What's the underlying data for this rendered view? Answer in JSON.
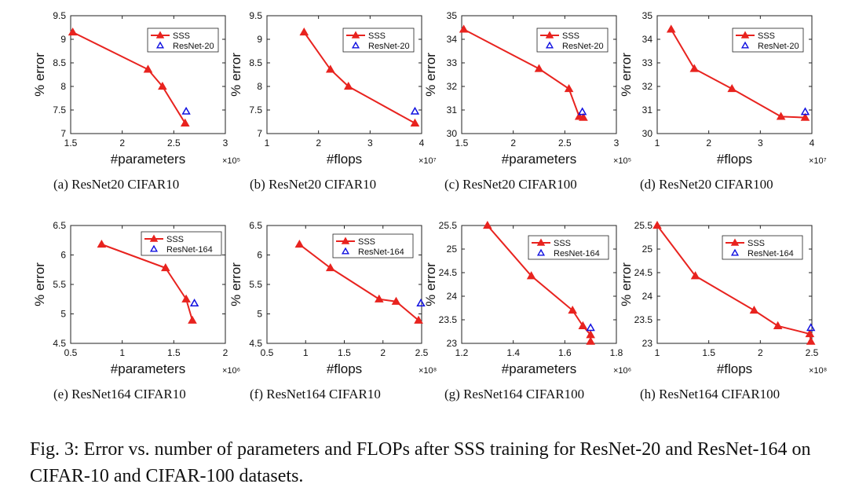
{
  "figure": {
    "caption": "Fig. 3: Error vs. number of parameters and FLOPs after SSS training for ResNet-20 and ResNet-164 on CIFAR-10 and CIFAR-100 datasets.",
    "colors": {
      "sss": "#e8231f",
      "baseline": "#1010e0",
      "axis": "#222222",
      "text": "#111111"
    }
  },
  "chart_data": [
    {
      "id": "a",
      "type": "line",
      "subcaption_label": "(a)",
      "subcaption_text": "ResNet20 CIFAR10",
      "xlabel": "#parameters",
      "ylabel": "% error",
      "x_exponent": "×10⁵",
      "xlim": [
        1.5,
        3
      ],
      "ylim": [
        7,
        9.5
      ],
      "xticks": [
        1.5,
        2,
        2.5,
        3
      ],
      "xtick_labels": [
        "1.5",
        "2",
        "2.5",
        "3"
      ],
      "yticks": [
        7,
        7.5,
        8,
        8.5,
        9,
        9.5
      ],
      "ytick_labels": [
        "7",
        "7.5",
        "8",
        "8.5",
        "9",
        "9.5"
      ],
      "series": [
        {
          "name": "SSS",
          "x": [
            1.52,
            2.25,
            2.39,
            2.61
          ],
          "y": [
            9.15,
            8.36,
            8.0,
            7.22
          ]
        },
        {
          "name": "ResNet-20",
          "x": [
            2.62
          ],
          "y": [
            7.47
          ]
        }
      ]
    },
    {
      "id": "b",
      "type": "line",
      "subcaption_label": "(b)",
      "subcaption_text": "ResNet20 CIFAR10",
      "xlabel": "#flops",
      "ylabel": "% error",
      "x_exponent": "×10⁷",
      "xlim": [
        1,
        4
      ],
      "ylim": [
        7,
        9.5
      ],
      "xticks": [
        1,
        2,
        3,
        4
      ],
      "xtick_labels": [
        "1",
        "2",
        "3",
        "4"
      ],
      "yticks": [
        7,
        7.5,
        8,
        8.5,
        9,
        9.5
      ],
      "ytick_labels": [
        "7",
        "7.5",
        "8",
        "8.5",
        "9",
        "9.5"
      ],
      "series": [
        {
          "name": "SSS",
          "x": [
            1.72,
            2.23,
            2.58,
            3.87
          ],
          "y": [
            9.15,
            8.36,
            8.0,
            7.22
          ]
        },
        {
          "name": "ResNet-20",
          "x": [
            3.87
          ],
          "y": [
            7.47
          ]
        }
      ]
    },
    {
      "id": "c",
      "type": "line",
      "subcaption_label": "(c)",
      "subcaption_text": "ResNet20 CIFAR100",
      "xlabel": "#parameters",
      "ylabel": "% error",
      "x_exponent": "×10⁵",
      "xlim": [
        1.5,
        3
      ],
      "ylim": [
        30,
        35
      ],
      "xticks": [
        1.5,
        2,
        2.5,
        3
      ],
      "xtick_labels": [
        "1.5",
        "2",
        "2.5",
        "3"
      ],
      "yticks": [
        30,
        31,
        32,
        33,
        34,
        35
      ],
      "ytick_labels": [
        "30",
        "31",
        "32",
        "33",
        "34",
        "35"
      ],
      "series": [
        {
          "name": "SSS",
          "x": [
            1.52,
            2.25,
            2.54,
            2.64,
            2.68
          ],
          "y": [
            34.42,
            32.75,
            31.9,
            30.72,
            30.68
          ]
        },
        {
          "name": "ResNet-20",
          "x": [
            2.67
          ],
          "y": [
            30.92
          ]
        }
      ]
    },
    {
      "id": "d",
      "type": "line",
      "subcaption_label": "(d)",
      "subcaption_text": "ResNet20 CIFAR100",
      "xlabel": "#flops",
      "ylabel": "% error",
      "x_exponent": "×10⁷",
      "xlim": [
        1,
        4
      ],
      "ylim": [
        30,
        35
      ],
      "xticks": [
        1,
        2,
        3,
        4
      ],
      "xtick_labels": [
        "1",
        "2",
        "3",
        "4"
      ],
      "yticks": [
        30,
        31,
        32,
        33,
        34,
        35
      ],
      "ytick_labels": [
        "30",
        "31",
        "32",
        "33",
        "34",
        "35"
      ],
      "series": [
        {
          "name": "SSS",
          "x": [
            1.27,
            1.72,
            2.45,
            3.4,
            3.87
          ],
          "y": [
            34.42,
            32.75,
            31.9,
            30.72,
            30.68
          ]
        },
        {
          "name": "ResNet-20",
          "x": [
            3.87
          ],
          "y": [
            30.92
          ]
        }
      ]
    },
    {
      "id": "e",
      "type": "line",
      "subcaption_label": "(e)",
      "subcaption_text": "ResNet164 CIFAR10",
      "xlabel": "#parameters",
      "ylabel": "% error",
      "x_exponent": "×10⁶",
      "xlim": [
        0.5,
        2
      ],
      "ylim": [
        4.5,
        6.5
      ],
      "xticks": [
        0.5,
        1,
        1.5,
        2
      ],
      "xtick_labels": [
        "0.5",
        "1",
        "1.5",
        "2"
      ],
      "yticks": [
        4.5,
        5,
        5.5,
        6,
        6.5
      ],
      "ytick_labels": [
        "4.5",
        "5",
        "5.5",
        "6",
        "6.5"
      ],
      "series": [
        {
          "name": "SSS",
          "x": [
            0.8,
            1.42,
            1.62,
            1.68
          ],
          "y": [
            6.18,
            5.78,
            5.25,
            4.89
          ]
        },
        {
          "name": "ResNet-164",
          "x": [
            1.7
          ],
          "y": [
            5.18
          ]
        }
      ]
    },
    {
      "id": "f",
      "type": "line",
      "subcaption_label": "(f)",
      "subcaption_text": "ResNet164 CIFAR10",
      "xlabel": "#flops",
      "ylabel": "% error",
      "x_exponent": "×10⁸",
      "xlim": [
        0.5,
        2.5
      ],
      "ylim": [
        4.5,
        6.5
      ],
      "xticks": [
        0.5,
        1,
        1.5,
        2,
        2.5
      ],
      "xtick_labels": [
        "0.5",
        "1",
        "1.5",
        "2",
        "2.5"
      ],
      "yticks": [
        4.5,
        5,
        5.5,
        6,
        6.5
      ],
      "ytick_labels": [
        "4.5",
        "5",
        "5.5",
        "6",
        "6.5"
      ],
      "series": [
        {
          "name": "SSS",
          "x": [
            0.92,
            1.32,
            1.95,
            2.17,
            2.46
          ],
          "y": [
            6.18,
            5.78,
            5.25,
            5.21,
            4.89
          ]
        },
        {
          "name": "ResNet-164",
          "x": [
            2.49
          ],
          "y": [
            5.18
          ]
        }
      ]
    },
    {
      "id": "g",
      "type": "line",
      "subcaption_label": "(g)",
      "subcaption_text": "ResNet164 CIFAR100",
      "xlabel": "#parameters",
      "ylabel": "% error",
      "x_exponent": "×10⁶",
      "xlim": [
        1.2,
        1.8
      ],
      "ylim": [
        23,
        25.5
      ],
      "xticks": [
        1.2,
        1.4,
        1.6,
        1.8
      ],
      "xtick_labels": [
        "1.2",
        "1.4",
        "1.6",
        "1.8"
      ],
      "yticks": [
        23,
        23.5,
        24,
        24.5,
        25,
        25.5
      ],
      "ytick_labels": [
        "23",
        "23.5",
        "24",
        "24.5",
        "25",
        "25.5"
      ],
      "series": [
        {
          "name": "SSS",
          "x": [
            1.3,
            1.47,
            1.63,
            1.67,
            1.7,
            1.7
          ],
          "y": [
            25.5,
            24.43,
            23.7,
            23.37,
            23.18,
            23.04
          ]
        },
        {
          "name": "ResNet-164",
          "x": [
            1.7
          ],
          "y": [
            23.33
          ]
        }
      ]
    },
    {
      "id": "h",
      "type": "line",
      "subcaption_label": "(h)",
      "subcaption_text": "ResNet164 CIFAR100",
      "xlabel": "#flops",
      "ylabel": "% error",
      "x_exponent": "×10⁸",
      "xlim": [
        1,
        2.5
      ],
      "ylim": [
        23,
        25.5
      ],
      "xticks": [
        1,
        1.5,
        2,
        2.5
      ],
      "xtick_labels": [
        "1",
        "1.5",
        "2",
        "2.5"
      ],
      "yticks": [
        23,
        23.5,
        24,
        24.5,
        25,
        25.5
      ],
      "ytick_labels": [
        "23",
        "23.5",
        "24",
        "24.5",
        "25",
        "25.5"
      ],
      "series": [
        {
          "name": "SSS",
          "x": [
            1.0,
            1.37,
            1.94,
            2.17,
            2.48,
            2.49
          ],
          "y": [
            25.5,
            24.43,
            23.7,
            23.37,
            23.2,
            23.04
          ]
        },
        {
          "name": "ResNet-164",
          "x": [
            2.49
          ],
          "y": [
            23.33
          ]
        }
      ]
    }
  ]
}
